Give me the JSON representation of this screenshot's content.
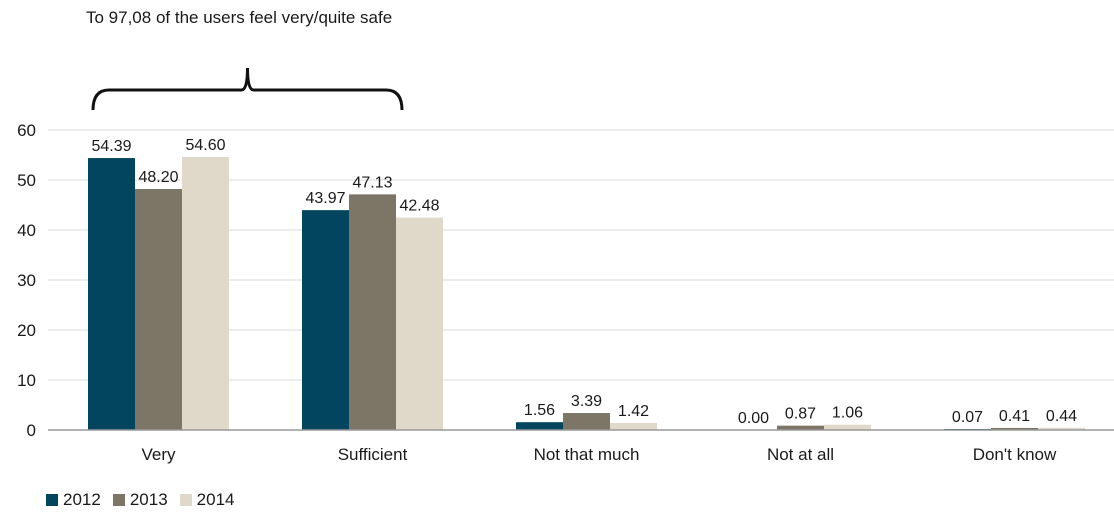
{
  "chart_data": {
    "type": "bar",
    "title": "",
    "xlabel": "",
    "ylabel": "",
    "ylim": [
      0,
      60
    ],
    "yticks": [
      0,
      10,
      20,
      30,
      40,
      50,
      60
    ],
    "grid": true,
    "legend_position": "bottom-left",
    "categories": [
      "Very",
      "Sufficient",
      "Not that much",
      "Not at all",
      "Don't know"
    ],
    "series": [
      {
        "name": "2012",
        "color": "#02455f",
        "values": [
          54.39,
          43.97,
          1.56,
          0.0,
          0.07
        ],
        "labels": [
          "54.39",
          "43.97",
          "1.56",
          "0.00",
          "0.07"
        ]
      },
      {
        "name": "2013",
        "color": "#7d7667",
        "values": [
          48.2,
          47.13,
          3.39,
          0.87,
          0.41
        ],
        "labels": [
          "48.20",
          "47.13",
          "3.39",
          "0.87",
          "0.41"
        ]
      },
      {
        "name": "2014",
        "color": "#e0d9ca",
        "values": [
          54.6,
          42.48,
          1.42,
          1.06,
          0.44
        ],
        "labels": [
          "54.60",
          "42.48",
          "1.42",
          "1.06",
          "0.44"
        ]
      }
    ],
    "annotations": [
      {
        "text": "To 97,08 of the users feel very/quite safe",
        "spans_categories": [
          "Very",
          "Sufficient"
        ],
        "shape": "curly-brace"
      }
    ]
  },
  "colors": {
    "axis": "#999999",
    "grid": "#d9d9d9",
    "text": "#1a1a1a",
    "brace": "#111111"
  }
}
